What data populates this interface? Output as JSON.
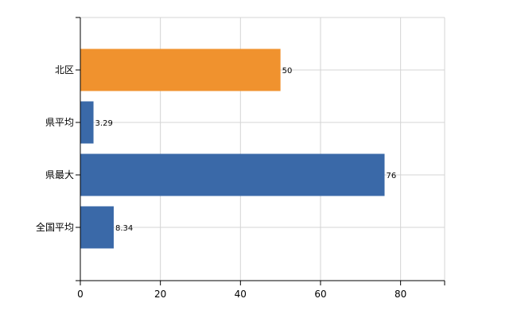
{
  "chart_data": {
    "type": "bar",
    "orientation": "horizontal",
    "categories": [
      "北区",
      "県平均",
      "県最大",
      "全国平均"
    ],
    "values": [
      50,
      3.29,
      76,
      8.34
    ],
    "value_labels": [
      "50",
      "3.29",
      "76",
      "8.34"
    ],
    "highlight_index": 0,
    "xlim": [
      0,
      91
    ],
    "xticks": [
      0,
      20,
      40,
      60,
      80
    ],
    "xtick_labels": [
      "0",
      "20",
      "40",
      "60",
      "80"
    ],
    "grid": true,
    "colors": {
      "highlight": "#f0922e",
      "default": "#3a69a8",
      "grid": "#d4d4d4",
      "axis": "#000000"
    }
  }
}
